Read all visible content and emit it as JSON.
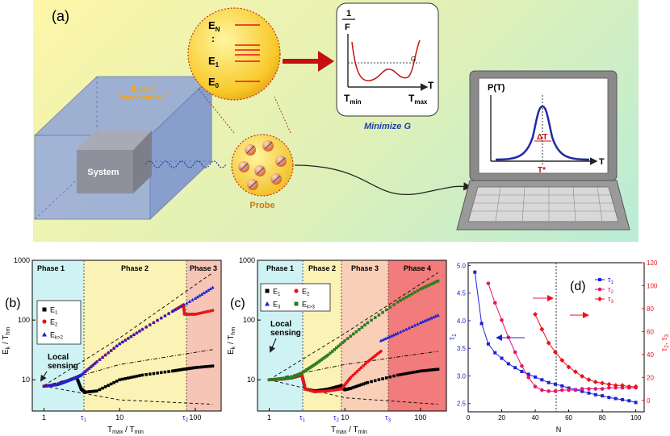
{
  "panel_a": {
    "label": "(a)",
    "bath_label_1": "Bath @",
    "bath_label_2": "Temperature, T",
    "system_label": "System",
    "probe_label": "Probe",
    "levels": {
      "top": "E",
      "top_sub": "N",
      "dots": ":",
      "mid": "E",
      "mid_sub": "1",
      "bot": "E",
      "bot_sub": "0"
    },
    "inset_G": {
      "ylabel_num": "1",
      "ylabel_den": "F",
      "g_label": "G",
      "xlabel": "T",
      "tmin": "T",
      "tmin_sub": "min",
      "tmax": "T",
      "tmax_sub": "max"
    },
    "minimize_label": "Minimize G",
    "screen": {
      "ylabel": "P(T)",
      "xlabel": "T",
      "delta": "ΔT",
      "tstar": "T*"
    }
  },
  "panel_b": {
    "label": "(b)",
    "phases": [
      "Phase 1",
      "Phase 2",
      "Phase 3"
    ],
    "ylabel": "E",
    "ylabel_sub": "k",
    "ylabel_tail": " / T",
    "ylabel_tail_sub": "hm",
    "xlabel_a": "T",
    "xlabel_a_sub": "max",
    "xlabel_b": " / T",
    "xlabel_b_sub": "min",
    "yticks": [
      "10",
      "100",
      "1000"
    ],
    "xticks": [
      "1",
      "10",
      "100"
    ],
    "tau1": "τ",
    "tau1_sub": "1",
    "tau2": "τ",
    "tau2_sub": "2",
    "local_sensing_1": "Local",
    "local_sensing_2": "sensing",
    "legend": [
      {
        "name": "E",
        "sub": "1",
        "color": "#000000"
      },
      {
        "name": "E",
        "sub": "2",
        "color": "#e8141c"
      },
      {
        "name": "E",
        "sub": "k>2",
        "color": "#1c22d6"
      }
    ]
  },
  "panel_c": {
    "label": "(c)",
    "phases": [
      "Phase 1",
      "Phase 2",
      "Phase 3",
      "Phase 4"
    ],
    "ylabel": "E",
    "ylabel_sub": "k",
    "ylabel_tail": " / T",
    "ylabel_tail_sub": "hm",
    "xlabel_a": "T",
    "xlabel_a_sub": "max",
    "xlabel_b": " / T",
    "xlabel_b_sub": "min",
    "yticks": [
      "10",
      "100",
      "1000"
    ],
    "xticks": [
      "1",
      "10",
      "100"
    ],
    "tau1": "τ",
    "tau1_sub": "1",
    "tau2": "τ",
    "tau2_sub": "2",
    "tau3": "τ",
    "tau3_sub": "3",
    "local_sensing_1": "Local",
    "local_sensing_2": "sensing",
    "legend": [
      {
        "name": "E",
        "sub": "1",
        "color": "#000000"
      },
      {
        "name": "E",
        "sub": "2",
        "color": "#e8141c"
      },
      {
        "name": "E",
        "sub": "3",
        "color": "#1c22d6"
      },
      {
        "name": "E",
        "sub": "k>3",
        "color": "#2e7d1e"
      }
    ]
  },
  "panel_d": {
    "label": "(d)",
    "xlabel": "N",
    "yleft_label": "τ",
    "yleft_sub": "1",
    "yright_label": "τ",
    "yright_sub": "2",
    "yright_label2": ", τ",
    "yright_sub2": "3",
    "xticks": [
      "0",
      "20",
      "40",
      "60",
      "80",
      "100"
    ],
    "yleft_ticks": [
      "2.5",
      "3.0",
      "3.5",
      "4.0",
      "4.5",
      "5.0"
    ],
    "yright_ticks": [
      "0",
      "20",
      "40",
      "60",
      "80",
      "100",
      "120"
    ],
    "legend": [
      {
        "name": "τ",
        "sub": "1",
        "color": "#1c22d6"
      },
      {
        "name": "τ",
        "sub": "2",
        "color": "#e8146e"
      },
      {
        "name": "τ",
        "sub": "3",
        "color": "#e8141c"
      }
    ]
  },
  "chart_data": [
    {
      "type": "line",
      "title": "(b)",
      "xlabel": "Tmax / Tmin",
      "ylabel": "Ek / Thm",
      "xscale": "log",
      "yscale": "log",
      "xlim": [
        0.7,
        220
      ],
      "ylim": [
        3,
        1000
      ],
      "series": [
        {
          "name": "E1",
          "x": [
            1,
            1.5,
            2,
            2.7,
            3.1,
            3.5,
            5,
            10,
            20,
            50,
            70,
            100,
            170
          ],
          "y": [
            7.8,
            8.3,
            9.5,
            11,
            7,
            6.2,
            6.5,
            10,
            12,
            14,
            15,
            16,
            17
          ]
        },
        {
          "name": "E2",
          "x": [
            1,
            1.5,
            2,
            2.7,
            3.1,
            5,
            10,
            20,
            50,
            70,
            72,
            100,
            170
          ],
          "y": [
            7.8,
            8.3,
            9.5,
            11,
            12,
            20,
            40,
            70,
            140,
            180,
            125,
            125,
            145
          ]
        },
        {
          "name": "Ek>2",
          "x": [
            1,
            1.5,
            2,
            2.7,
            3.1,
            5,
            10,
            20,
            50,
            100,
            170
          ],
          "y": [
            7.8,
            8.3,
            9.5,
            11,
            12,
            20,
            40,
            70,
            140,
            230,
            350
          ]
        }
      ]
    },
    {
      "type": "line",
      "title": "(c)",
      "xlabel": "Tmax / Tmin",
      "ylabel": "Ek / Thm",
      "xscale": "log",
      "yscale": "log",
      "xlim": [
        0.7,
        220
      ],
      "ylim": [
        3,
        1000
      ],
      "series": [
        {
          "name": "E1",
          "x": [
            1,
            1.5,
            2,
            2.7,
            3,
            4,
            6,
            9,
            10,
            12,
            20,
            50,
            100,
            170
          ],
          "y": [
            10,
            10.3,
            10.8,
            12,
            7,
            6.5,
            7,
            8,
            6.8,
            7.2,
            9,
            12,
            14,
            15
          ]
        },
        {
          "name": "E2",
          "x": [
            1,
            1.5,
            2,
            2.7,
            3,
            4,
            6,
            9,
            12,
            20,
            30
          ],
          "y": [
            10,
            10.3,
            10.8,
            12,
            7,
            6.3,
            6.5,
            7,
            11,
            20,
            30
          ]
        },
        {
          "name": "E3",
          "x": [
            30,
            50,
            100,
            170
          ],
          "y": [
            45,
            60,
            90,
            120
          ]
        },
        {
          "name": "Ek>3",
          "x": [
            1,
            1.5,
            2,
            2.7,
            4,
            6,
            10,
            20,
            50,
            100,
            170
          ],
          "y": [
            10,
            10.5,
            11,
            13,
            18,
            26,
            45,
            90,
            200,
            330,
            450
          ]
        }
      ]
    },
    {
      "type": "line",
      "title": "(d)",
      "xlabel": "N",
      "ylabel": "τ1",
      "y2label": "τ2, τ3",
      "xlim": [
        0,
        105
      ],
      "ylim": [
        2.35,
        5.05
      ],
      "y2lim": [
        -10,
        120
      ],
      "series": [
        {
          "name": "τ1",
          "axis": "left",
          "x": [
            4,
            8,
            12,
            16,
            20,
            24,
            28,
            32,
            36,
            40,
            44,
            48,
            52,
            56,
            60,
            64,
            68,
            72,
            76,
            80,
            84,
            88,
            92,
            96,
            100
          ],
          "y": [
            4.88,
            3.95,
            3.58,
            3.42,
            3.32,
            3.22,
            3.15,
            3.08,
            3.03,
            2.98,
            2.93,
            2.88,
            2.85,
            2.82,
            2.78,
            2.75,
            2.72,
            2.69,
            2.66,
            2.64,
            2.61,
            2.59,
            2.57,
            2.55,
            2.52
          ]
        },
        {
          "name": "τ2",
          "axis": "right",
          "x": [
            12,
            16,
            20,
            24,
            28,
            32,
            36,
            40,
            44,
            48,
            52,
            56,
            60,
            64,
            68,
            72,
            76,
            80,
            84,
            88,
            92,
            96,
            100
          ],
          "y": [
            102,
            85,
            70,
            55,
            42,
            30,
            20,
            12,
            9,
            8,
            8,
            9,
            9,
            9,
            10,
            10,
            10,
            10,
            11,
            11,
            11,
            11,
            11
          ]
        },
        {
          "name": "τ3",
          "axis": "right",
          "x": [
            40,
            44,
            48,
            52,
            56,
            60,
            64,
            68,
            72,
            76,
            80,
            84,
            88,
            92,
            96,
            100
          ],
          "y": [
            75,
            62,
            50,
            42,
            35,
            29,
            25,
            21,
            18,
            16,
            15,
            14,
            13,
            13,
            12,
            12
          ]
        }
      ]
    }
  ]
}
